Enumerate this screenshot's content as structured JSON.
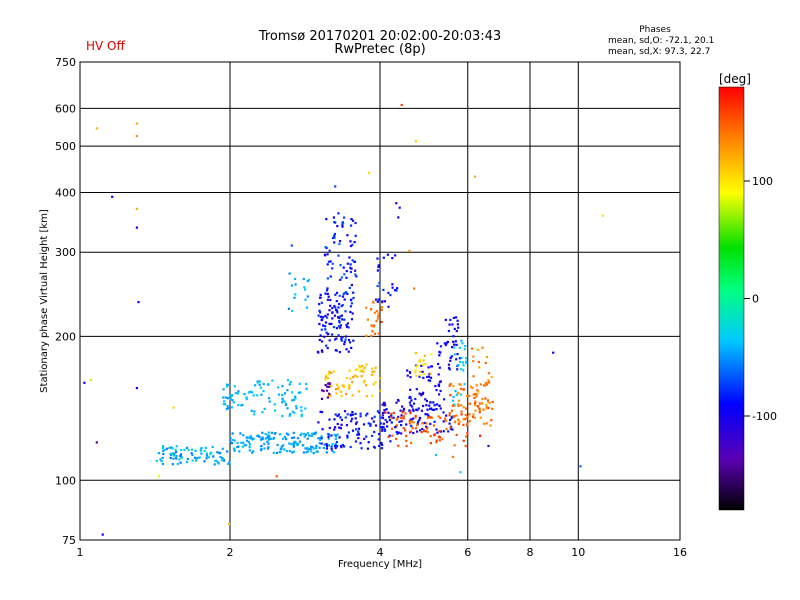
{
  "status_text": "HV Off",
  "colors": {
    "status": "#e00000",
    "grid": "#000000",
    "background": "#ffffff"
  },
  "chart_data": {
    "type": "scatter",
    "title": "Tromsø 20170201 20:02:00-20:03:43",
    "subtitle": "RwPretec (8p)",
    "xlabel": "Frequency [MHz]",
    "ylabel": "Stationary phase Virtual Height [km]",
    "x_scale": "log",
    "y_scale": "log",
    "xlim": [
      1,
      16
    ],
    "ylim": [
      75,
      750
    ],
    "x_ticks": [
      1,
      2,
      4,
      6,
      8,
      10,
      16
    ],
    "y_ticks": [
      75,
      100,
      200,
      300,
      400,
      500,
      600,
      750
    ],
    "grid": true,
    "info_box": {
      "title": "Phases",
      "line1": "mean, sd,O: -72.1, 20.1",
      "line2": "mean, sd,X: 97.3, 22.7"
    },
    "colorbar": {
      "label": "[deg]",
      "range": [
        -180,
        180
      ],
      "ticks": [
        100,
        0,
        -100
      ],
      "colormap": "rainbow (black to red)"
    },
    "points": [
      [
        1.08,
        545,
        120
      ],
      [
        1.16,
        392,
        -95
      ],
      [
        1.3,
        558,
        120
      ],
      [
        1.3,
        525,
        130
      ],
      [
        1.3,
        370,
        120
      ],
      [
        1.3,
        338,
        -95
      ],
      [
        1.31,
        236,
        -95
      ],
      [
        1.3,
        156,
        -95
      ],
      [
        1.08,
        120,
        -145
      ],
      [
        1.02,
        160,
        -95
      ],
      [
        1.11,
        77,
        -95
      ],
      [
        1.05,
        162,
        80
      ],
      [
        1.44,
        102,
        85
      ],
      [
        1.54,
        142,
        105
      ],
      [
        2.48,
        102,
        155
      ],
      [
        1.99,
        81,
        110
      ],
      [
        4.42,
        610,
        160
      ],
      [
        4.72,
        512,
        110
      ],
      [
        6.2,
        432,
        120
      ],
      [
        11.2,
        358,
        100
      ],
      [
        8.9,
        185,
        -100
      ],
      [
        10.1,
        107,
        -60
      ],
      [
        3.8,
        440,
        105
      ],
      [
        4.38,
        372,
        -100
      ],
      [
        4.31,
        380,
        -95
      ],
      [
        4.35,
        355,
        -100
      ],
      [
        4.58,
        302,
        130
      ],
      [
        4.68,
        252,
        140
      ],
      [
        3.25,
        412,
        -70
      ],
      [
        5.8,
        104,
        -30
      ],
      [
        6.6,
        118,
        -120
      ],
      [
        6.35,
        124,
        175
      ],
      [
        5.18,
        113,
        -30
      ],
      [
        5.6,
        112,
        140
      ],
      [
        3.12,
        352,
        -90
      ],
      [
        3.3,
        362,
        -80
      ],
      [
        2.66,
        310,
        -70
      ],
      [
        2.7,
        264,
        -40
      ]
    ],
    "clusters": [
      {
        "x": [
          1.42,
          2.0
        ],
        "y": [
          108,
          118
        ],
        "n": 90,
        "phase": [
          -60,
          -20
        ]
      },
      {
        "x": [
          2.0,
          3.3
        ],
        "y": [
          114,
          126
        ],
        "n": 160,
        "phase": [
          -55,
          -35
        ]
      },
      {
        "x": [
          3.0,
          4.2
        ],
        "y": [
          116,
          140
        ],
        "n": 110,
        "phase": [
          -110,
          -70
        ]
      },
      {
        "x": [
          4.0,
          5.6
        ],
        "y": [
          125,
          148
        ],
        "n": 95,
        "phase": [
          -115,
          -80
        ]
      },
      {
        "x": [
          4.1,
          6.0
        ],
        "y": [
          118,
          140
        ],
        "n": 80,
        "phase": [
          135,
          165
        ]
      },
      {
        "x": [
          5.5,
          6.8
        ],
        "y": [
          130,
          160
        ],
        "n": 70,
        "phase": [
          125,
          160
        ]
      },
      {
        "x": [
          1.92,
          2.08
        ],
        "y": [
          140,
          160
        ],
        "n": 25,
        "phase": [
          -55,
          -30
        ]
      },
      {
        "x": [
          2.1,
          2.85
        ],
        "y": [
          136,
          162
        ],
        "n": 70,
        "phase": [
          -50,
          -30
        ]
      },
      {
        "x": [
          2.6,
          2.9
        ],
        "y": [
          225,
          275
        ],
        "n": 15,
        "phase": [
          -60,
          -30
        ]
      },
      {
        "x": [
          3.0,
          3.55
        ],
        "y": [
          185,
          250
        ],
        "n": 110,
        "phase": [
          -110,
          -70
        ]
      },
      {
        "x": [
          3.1,
          3.6
        ],
        "y": [
          240,
          360
        ],
        "n": 70,
        "phase": [
          -105,
          -60
        ]
      },
      {
        "x": [
          3.1,
          3.55
        ],
        "y": [
          150,
          170
        ],
        "n": 35,
        "phase": [
          100,
          130
        ]
      },
      {
        "x": [
          3.55,
          4.0
        ],
        "y": [
          150,
          175
        ],
        "n": 30,
        "phase": [
          100,
          125
        ]
      },
      {
        "x": [
          3.75,
          4.1
        ],
        "y": [
          200,
          240
        ],
        "n": 25,
        "phase": [
          125,
          160
        ]
      },
      {
        "x": [
          3.9,
          4.35
        ],
        "y": [
          230,
          300
        ],
        "n": 25,
        "phase": [
          -100,
          -70
        ]
      },
      {
        "x": [
          4.5,
          5.3
        ],
        "y": [
          140,
          175
        ],
        "n": 55,
        "phase": [
          -110,
          -80
        ]
      },
      {
        "x": [
          4.7,
          5.1
        ],
        "y": [
          162,
          185
        ],
        "n": 18,
        "phase": [
          90,
          120
        ]
      },
      {
        "x": [
          5.2,
          5.8
        ],
        "y": [
          170,
          220
        ],
        "n": 40,
        "phase": [
          -110,
          -80
        ]
      },
      {
        "x": [
          5.6,
          6.0
        ],
        "y": [
          140,
          200
        ],
        "n": 25,
        "phase": [
          -40,
          -20
        ]
      },
      {
        "x": [
          6.1,
          6.7
        ],
        "y": [
          140,
          190
        ],
        "n": 35,
        "phase": [
          120,
          150
        ]
      },
      {
        "x": [
          3.05,
          3.2
        ],
        "y": [
          148,
          160
        ],
        "n": 12,
        "phase": [
          -150,
          -130
        ]
      }
    ]
  }
}
